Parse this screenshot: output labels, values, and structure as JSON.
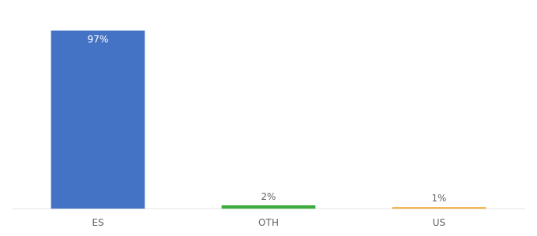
{
  "chart_data": {
    "type": "bar",
    "categories": [
      "ES",
      "OTH",
      "US"
    ],
    "values": [
      97,
      2,
      1
    ],
    "value_labels": [
      "97%",
      "2%",
      "1%"
    ],
    "colors": [
      "#4472c4",
      "#3dab3d",
      "#f0a830"
    ],
    "ylim": [
      0,
      105
    ],
    "data_labels": true,
    "tick_labels": "x",
    "grid": false
  }
}
